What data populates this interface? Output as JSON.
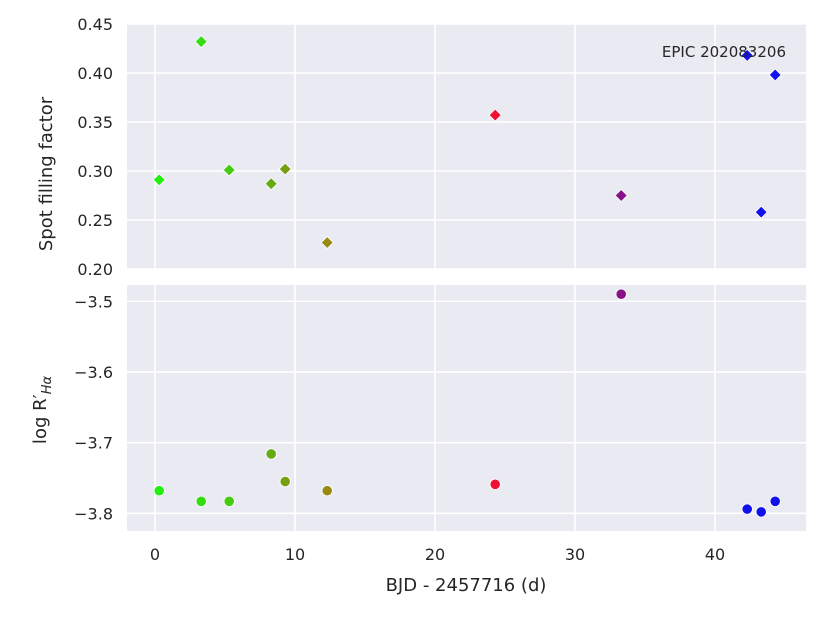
{
  "chart_data": [
    {
      "type": "scatter",
      "panel": "top",
      "ylabel": "Spot filling factor",
      "xlabel": "",
      "annotation": "EPIC 202083206",
      "xlim": [
        -2,
        46.5
      ],
      "ylim": [
        0.2,
        0.45
      ],
      "grid": true,
      "marker": "diamond",
      "x_ticks": [
        0,
        10,
        20,
        30,
        40
      ],
      "x_tick_labels_visible": false,
      "y_ticks": [
        0.2,
        0.25,
        0.3,
        0.35,
        0.4,
        0.45
      ],
      "y_tick_labels": [
        "0.20",
        "0.25",
        "0.30",
        "0.35",
        "0.40",
        "0.45"
      ],
      "points": [
        {
          "x": 0.3,
          "y": 0.291,
          "color": "#22ee11"
        },
        {
          "x": 3.3,
          "y": 0.432,
          "color": "#33dd11"
        },
        {
          "x": 5.3,
          "y": 0.301,
          "color": "#44cc11"
        },
        {
          "x": 8.3,
          "y": 0.287,
          "color": "#66aa11"
        },
        {
          "x": 9.3,
          "y": 0.302,
          "color": "#77a011"
        },
        {
          "x": 12.3,
          "y": 0.227,
          "color": "#998811"
        },
        {
          "x": 24.3,
          "y": 0.357,
          "color": "#ee1133"
        },
        {
          "x": 33.3,
          "y": 0.275,
          "color": "#881188"
        },
        {
          "x": 42.3,
          "y": 0.418,
          "color": "#1111ee"
        },
        {
          "x": 43.3,
          "y": 0.258,
          "color": "#1111ee"
        },
        {
          "x": 44.3,
          "y": 0.398,
          "color": "#1111ee"
        }
      ]
    },
    {
      "type": "scatter",
      "panel": "bottom",
      "ylabel": "log R′",
      "ylabel_subscript": "Hα",
      "xlabel": "BJD - 2457716 (d)",
      "xlim": [
        -2,
        46.5
      ],
      "ylim": [
        -3.825,
        -3.477
      ],
      "grid": true,
      "marker": "circle",
      "x_ticks": [
        0,
        10,
        20,
        30,
        40
      ],
      "x_tick_labels": [
        "0",
        "10",
        "20",
        "30",
        "40"
      ],
      "y_ticks": [
        -3.5,
        -3.6,
        -3.7,
        -3.8
      ],
      "y_tick_labels": [
        "−3.5",
        "−3.6",
        "−3.7",
        "−3.8"
      ],
      "points": [
        {
          "x": 0.3,
          "y": -3.768,
          "color": "#22ee11"
        },
        {
          "x": 3.3,
          "y": -3.783,
          "color": "#33dd11"
        },
        {
          "x": 5.3,
          "y": -3.783,
          "color": "#44cc11"
        },
        {
          "x": 8.3,
          "y": -3.716,
          "color": "#66aa11"
        },
        {
          "x": 9.3,
          "y": -3.755,
          "color": "#77a011"
        },
        {
          "x": 12.3,
          "y": -3.768,
          "color": "#998811"
        },
        {
          "x": 24.3,
          "y": -3.759,
          "color": "#ee1133"
        },
        {
          "x": 33.3,
          "y": -3.49,
          "color": "#881188"
        },
        {
          "x": 42.3,
          "y": -3.794,
          "color": "#1111ee"
        },
        {
          "x": 43.3,
          "y": -3.798,
          "color": "#1111ee"
        },
        {
          "x": 44.3,
          "y": -3.783,
          "color": "#1111ee"
        }
      ]
    }
  ]
}
